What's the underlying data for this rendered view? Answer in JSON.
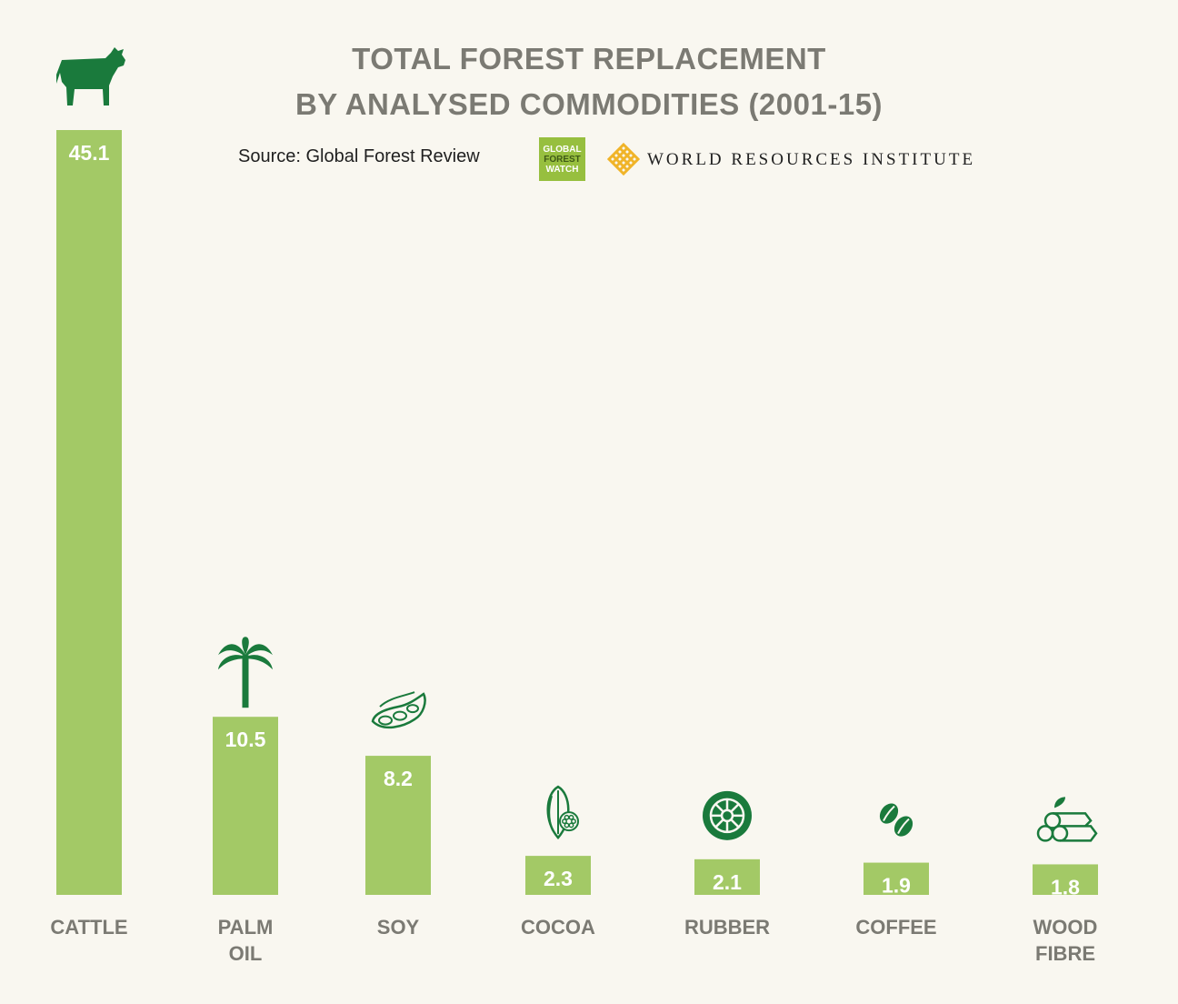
{
  "title_lines": [
    "TOTAL FOREST REPLACEMENT",
    "BY ANALYSED COMMODITIES (2001-15)"
  ],
  "source": "Source: Global Forest Review",
  "logos": {
    "gfw_lines": [
      "GLOBAL",
      "FOREST",
      "WATCH"
    ],
    "wri": "WORLD RESOURCES INSTITUTE"
  },
  "colors": {
    "bar": "#a3c966",
    "icon": "#1a7a3c",
    "text": "#7b7a73",
    "background": "#f9f7f0",
    "gfw": "#97bf3f",
    "wri": "#f0b429"
  },
  "chart_data": {
    "type": "bar",
    "title": "TOTAL FOREST REPLACEMENT BY ANALYSED COMMODITIES (2001-15)",
    "categories": [
      "CATTLE",
      "PALM OIL",
      "SOY",
      "COCOA",
      "RUBBER",
      "COFFEE",
      "WOOD FIBRE"
    ],
    "category_lines": [
      [
        "CATTLE"
      ],
      [
        "PALM",
        "OIL"
      ],
      [
        "SOY"
      ],
      [
        "COCOA"
      ],
      [
        "RUBBER"
      ],
      [
        "COFFEE"
      ],
      [
        "WOOD",
        "FIBRE"
      ]
    ],
    "values": [
      45.1,
      10.5,
      8.2,
      2.3,
      2.1,
      1.9,
      1.8
    ],
    "value_labels": [
      "45.1",
      "10.5",
      "8.2",
      "2.3",
      "2.1",
      "1.9",
      "1.8"
    ],
    "icons": [
      "cow-icon",
      "palm-tree-icon",
      "soybean-icon",
      "cocoa-pod-icon",
      "tire-icon",
      "coffee-bean-icon",
      "logs-icon"
    ],
    "xlabel": "",
    "ylabel": "",
    "grid": false,
    "legend": "none"
  }
}
